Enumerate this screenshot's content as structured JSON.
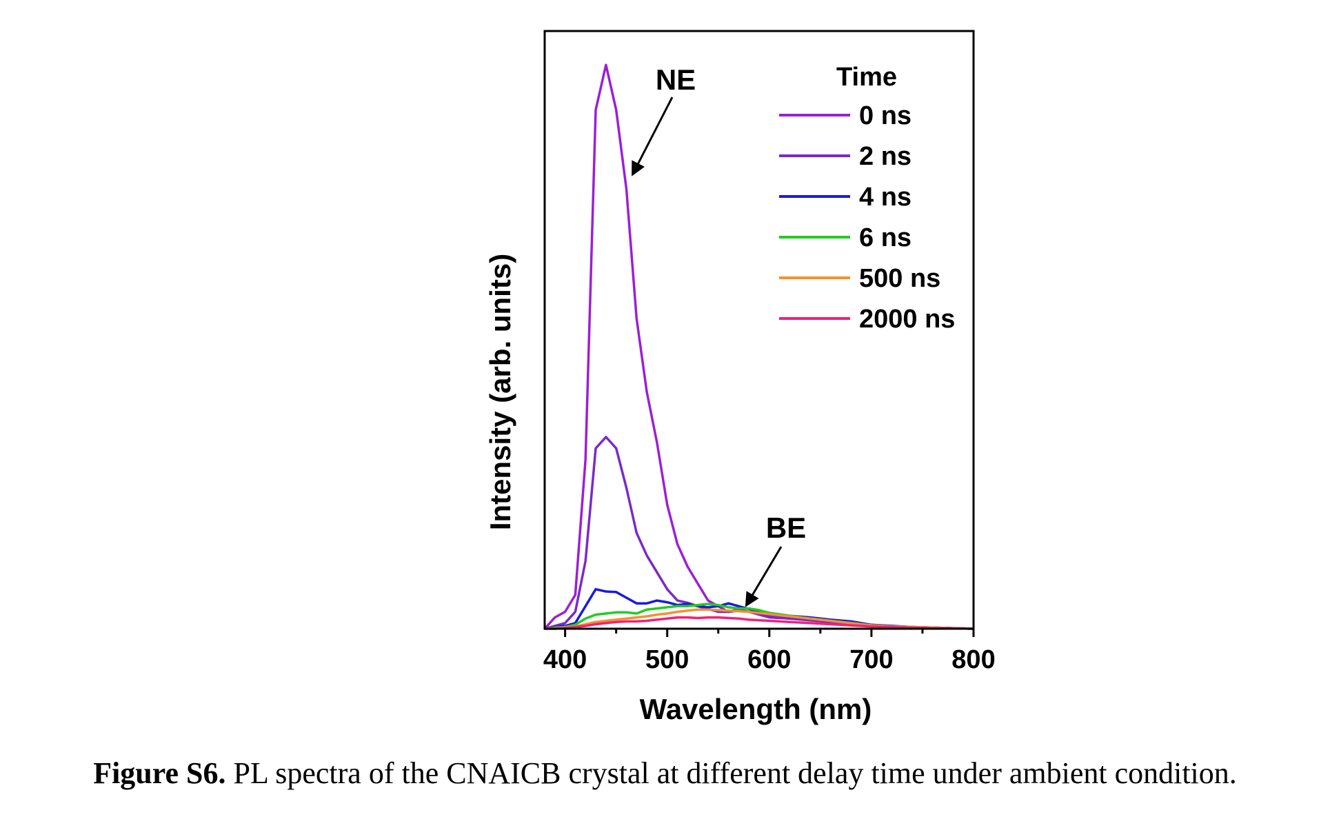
{
  "chart_data": {
    "type": "line",
    "xlabel": "Wavelength (nm)",
    "ylabel": "Intensity (arb. units)",
    "xlim": [
      380,
      800
    ],
    "ylim": [
      0,
      1.06
    ],
    "xticks": [
      400,
      500,
      600,
      700,
      800
    ],
    "x": [
      380,
      390,
      400,
      410,
      420,
      430,
      440,
      450,
      460,
      470,
      480,
      490,
      500,
      510,
      520,
      530,
      540,
      550,
      560,
      570,
      580,
      590,
      600,
      620,
      640,
      660,
      680,
      700,
      720,
      740,
      760,
      780,
      800
    ],
    "legend_title": "Time",
    "legend_position": "top-right",
    "series": [
      {
        "name": "0 ns",
        "color": "#9B1FD6",
        "values": [
          0,
          0.02,
          0.03,
          0.06,
          0.3,
          0.92,
          1.0,
          0.92,
          0.78,
          0.55,
          0.42,
          0.33,
          0.22,
          0.15,
          0.11,
          0.08,
          0.05,
          0.04,
          0.03,
          0.035,
          0.03,
          0.025,
          0.02,
          0.018,
          0.015,
          0.012,
          0.01,
          0.006,
          0.004,
          0.003,
          0.002,
          0.001,
          0.0
        ]
      },
      {
        "name": "2 ns",
        "color": "#7A2AC8",
        "values": [
          0,
          0.005,
          0.01,
          0.03,
          0.12,
          0.32,
          0.34,
          0.32,
          0.25,
          0.17,
          0.13,
          0.1,
          0.07,
          0.05,
          0.046,
          0.04,
          0.035,
          0.03,
          0.03,
          0.032,
          0.03,
          0.027,
          0.022,
          0.018,
          0.015,
          0.012,
          0.01,
          0.006,
          0.004,
          0.003,
          0.002,
          0.001,
          0.0
        ]
      },
      {
        "name": "4 ns",
        "color": "#1A1AE0",
        "values": [
          0,
          0.003,
          0.005,
          0.01,
          0.04,
          0.07,
          0.066,
          0.065,
          0.055,
          0.045,
          0.045,
          0.05,
          0.047,
          0.042,
          0.044,
          0.04,
          0.038,
          0.04,
          0.045,
          0.04,
          0.035,
          0.03,
          0.028,
          0.023,
          0.02,
          0.016,
          0.013,
          0.007,
          0.005,
          0.003,
          0.002,
          0.001,
          0.0
        ]
      },
      {
        "name": "6 ns",
        "color": "#22CC22",
        "values": [
          0,
          0.002,
          0.003,
          0.007,
          0.018,
          0.025,
          0.027,
          0.029,
          0.029,
          0.027,
          0.034,
          0.036,
          0.038,
          0.04,
          0.04,
          0.042,
          0.044,
          0.042,
          0.038,
          0.036,
          0.036,
          0.033,
          0.028,
          0.023,
          0.018,
          0.014,
          0.01,
          0.006,
          0.004,
          0.003,
          0.002,
          0.001,
          0.0
        ]
      },
      {
        "name": "500 ns",
        "color": "#F2922E",
        "values": [
          0,
          0.001,
          0.002,
          0.004,
          0.008,
          0.012,
          0.014,
          0.016,
          0.018,
          0.02,
          0.022,
          0.025,
          0.027,
          0.03,
          0.032,
          0.034,
          0.034,
          0.033,
          0.032,
          0.031,
          0.03,
          0.028,
          0.026,
          0.022,
          0.018,
          0.014,
          0.01,
          0.006,
          0.004,
          0.003,
          0.002,
          0.001,
          0.0
        ]
      },
      {
        "name": "2000 ns",
        "color": "#F0207A",
        "values": [
          0,
          0.0,
          0.001,
          0.003,
          0.005,
          0.008,
          0.01,
          0.012,
          0.013,
          0.013,
          0.014,
          0.016,
          0.018,
          0.02,
          0.02,
          0.019,
          0.02,
          0.02,
          0.019,
          0.018,
          0.016,
          0.015,
          0.014,
          0.012,
          0.01,
          0.008,
          0.006,
          0.004,
          0.003,
          0.002,
          0.001,
          0.001,
          0.0
        ]
      }
    ],
    "annotations": [
      {
        "text": "NE",
        "x": 440,
        "y": 0.92
      },
      {
        "text": "BE",
        "x": 570,
        "y": 0.04
      }
    ]
  },
  "caption": {
    "label": "Figure S6.",
    "text": "PL spectra of the CNAICB crystal at different delay time under ambient condition."
  }
}
